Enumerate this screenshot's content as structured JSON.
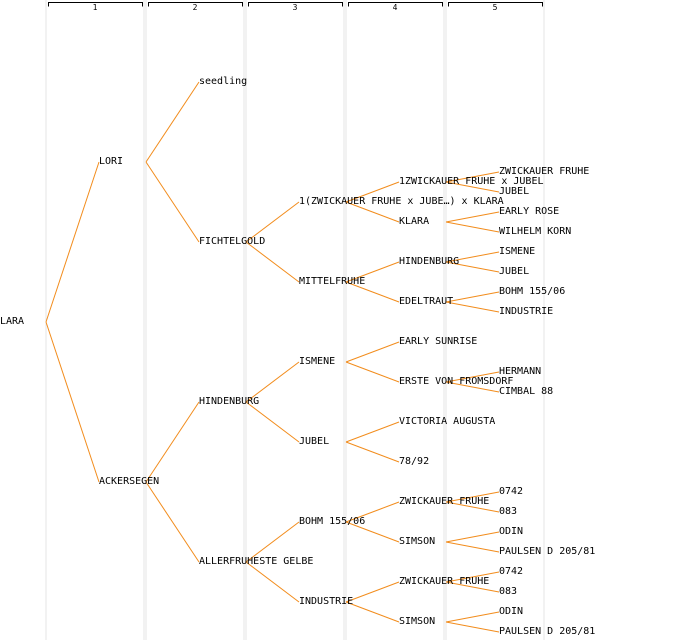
{
  "generation_headers": [
    "1",
    "2",
    "3",
    "4",
    "5"
  ],
  "colors": {
    "connector": "#f28c1c",
    "column_line": "#e6e6e6",
    "header_bracket": "#000000",
    "text": "#000000"
  },
  "tree": {
    "label": "LARA",
    "children": [
      {
        "label": "LORI",
        "children": [
          {
            "label": "seedling"
          },
          {
            "label": "FICHTELGOLD",
            "children": [
              {
                "label": "1(ZWICKAUER FRUHE x JUBE…) x KLARA",
                "children": [
                  {
                    "label": "1ZWICKAUER FRUHE x JUBEL",
                    "children": [
                      {
                        "label": "ZWICKAUER FRUHE"
                      },
                      {
                        "label": "JUBEL"
                      }
                    ]
                  },
                  {
                    "label": "KLARA",
                    "children": [
                      {
                        "label": "EARLY ROSE"
                      },
                      {
                        "label": "WILHELM KORN"
                      }
                    ]
                  }
                ]
              },
              {
                "label": "MITTELFRUHE",
                "children": [
                  {
                    "label": "HINDENBURG",
                    "children": [
                      {
                        "label": "ISMENE"
                      },
                      {
                        "label": "JUBEL"
                      }
                    ]
                  },
                  {
                    "label": "EDELTRAUT",
                    "children": [
                      {
                        "label": "BOHM 155/06"
                      },
                      {
                        "label": "INDUSTRIE"
                      }
                    ]
                  }
                ]
              }
            ]
          }
        ]
      },
      {
        "label": "ACKERSEGEN",
        "children": [
          {
            "label": "HINDENBURG",
            "children": [
              {
                "label": "ISMENE",
                "children": [
                  {
                    "label": "EARLY SUNRISE"
                  },
                  {
                    "label": "ERSTE VON FROMSDORF",
                    "children": [
                      {
                        "label": "HERMANN"
                      },
                      {
                        "label": "CIMBAL 88"
                      }
                    ]
                  }
                ]
              },
              {
                "label": "JUBEL",
                "children": [
                  {
                    "label": "VICTORIA AUGUSTA"
                  },
                  {
                    "label": "78/92"
                  }
                ]
              }
            ]
          },
          {
            "label": "ALLERFRUHESTE GELBE",
            "children": [
              {
                "label": "BOHM 155/06",
                "children": [
                  {
                    "label": "ZWICKAUER FRUHE",
                    "children": [
                      {
                        "label": "0742"
                      },
                      {
                        "label": "083"
                      }
                    ]
                  },
                  {
                    "label": "SIMSON",
                    "children": [
                      {
                        "label": "ODIN"
                      },
                      {
                        "label": "PAULSEN D 205/81"
                      }
                    ]
                  }
                ]
              },
              {
                "label": "INDUSTRIE",
                "children": [
                  {
                    "label": "ZWICKAUER FRUHE",
                    "children": [
                      {
                        "label": "0742"
                      },
                      {
                        "label": "083"
                      }
                    ]
                  },
                  {
                    "label": "SIMSON",
                    "children": [
                      {
                        "label": "ODIN"
                      },
                      {
                        "label": "PAULSEN D 205/81"
                      }
                    ]
                  }
                ]
              }
            ]
          }
        ]
      }
    ]
  }
}
